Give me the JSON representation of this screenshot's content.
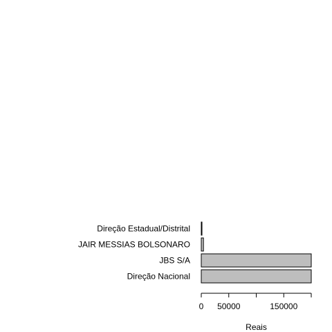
{
  "chart_data": {
    "type": "bar",
    "orientation": "horizontal",
    "categories": [
      "Direção Nacional",
      "JBS S/A",
      "JAIR MESSIAS BOLSONARO",
      "Direção Estadual/Distrital"
    ],
    "values": [
      200000,
      200000,
      4000,
      1200
    ],
    "xlabel": "Reais",
    "ylabel": "",
    "title": "",
    "xlim": [
      0,
      200000
    ],
    "x_ticks": [
      0,
      50000,
      100000,
      150000,
      200000
    ],
    "x_tick_labels": [
      "0",
      "50000",
      "",
      "150000",
      ""
    ],
    "bar_color": "#bebebe",
    "bar_border_color": "#000000",
    "grid": false,
    "legend": "none"
  }
}
